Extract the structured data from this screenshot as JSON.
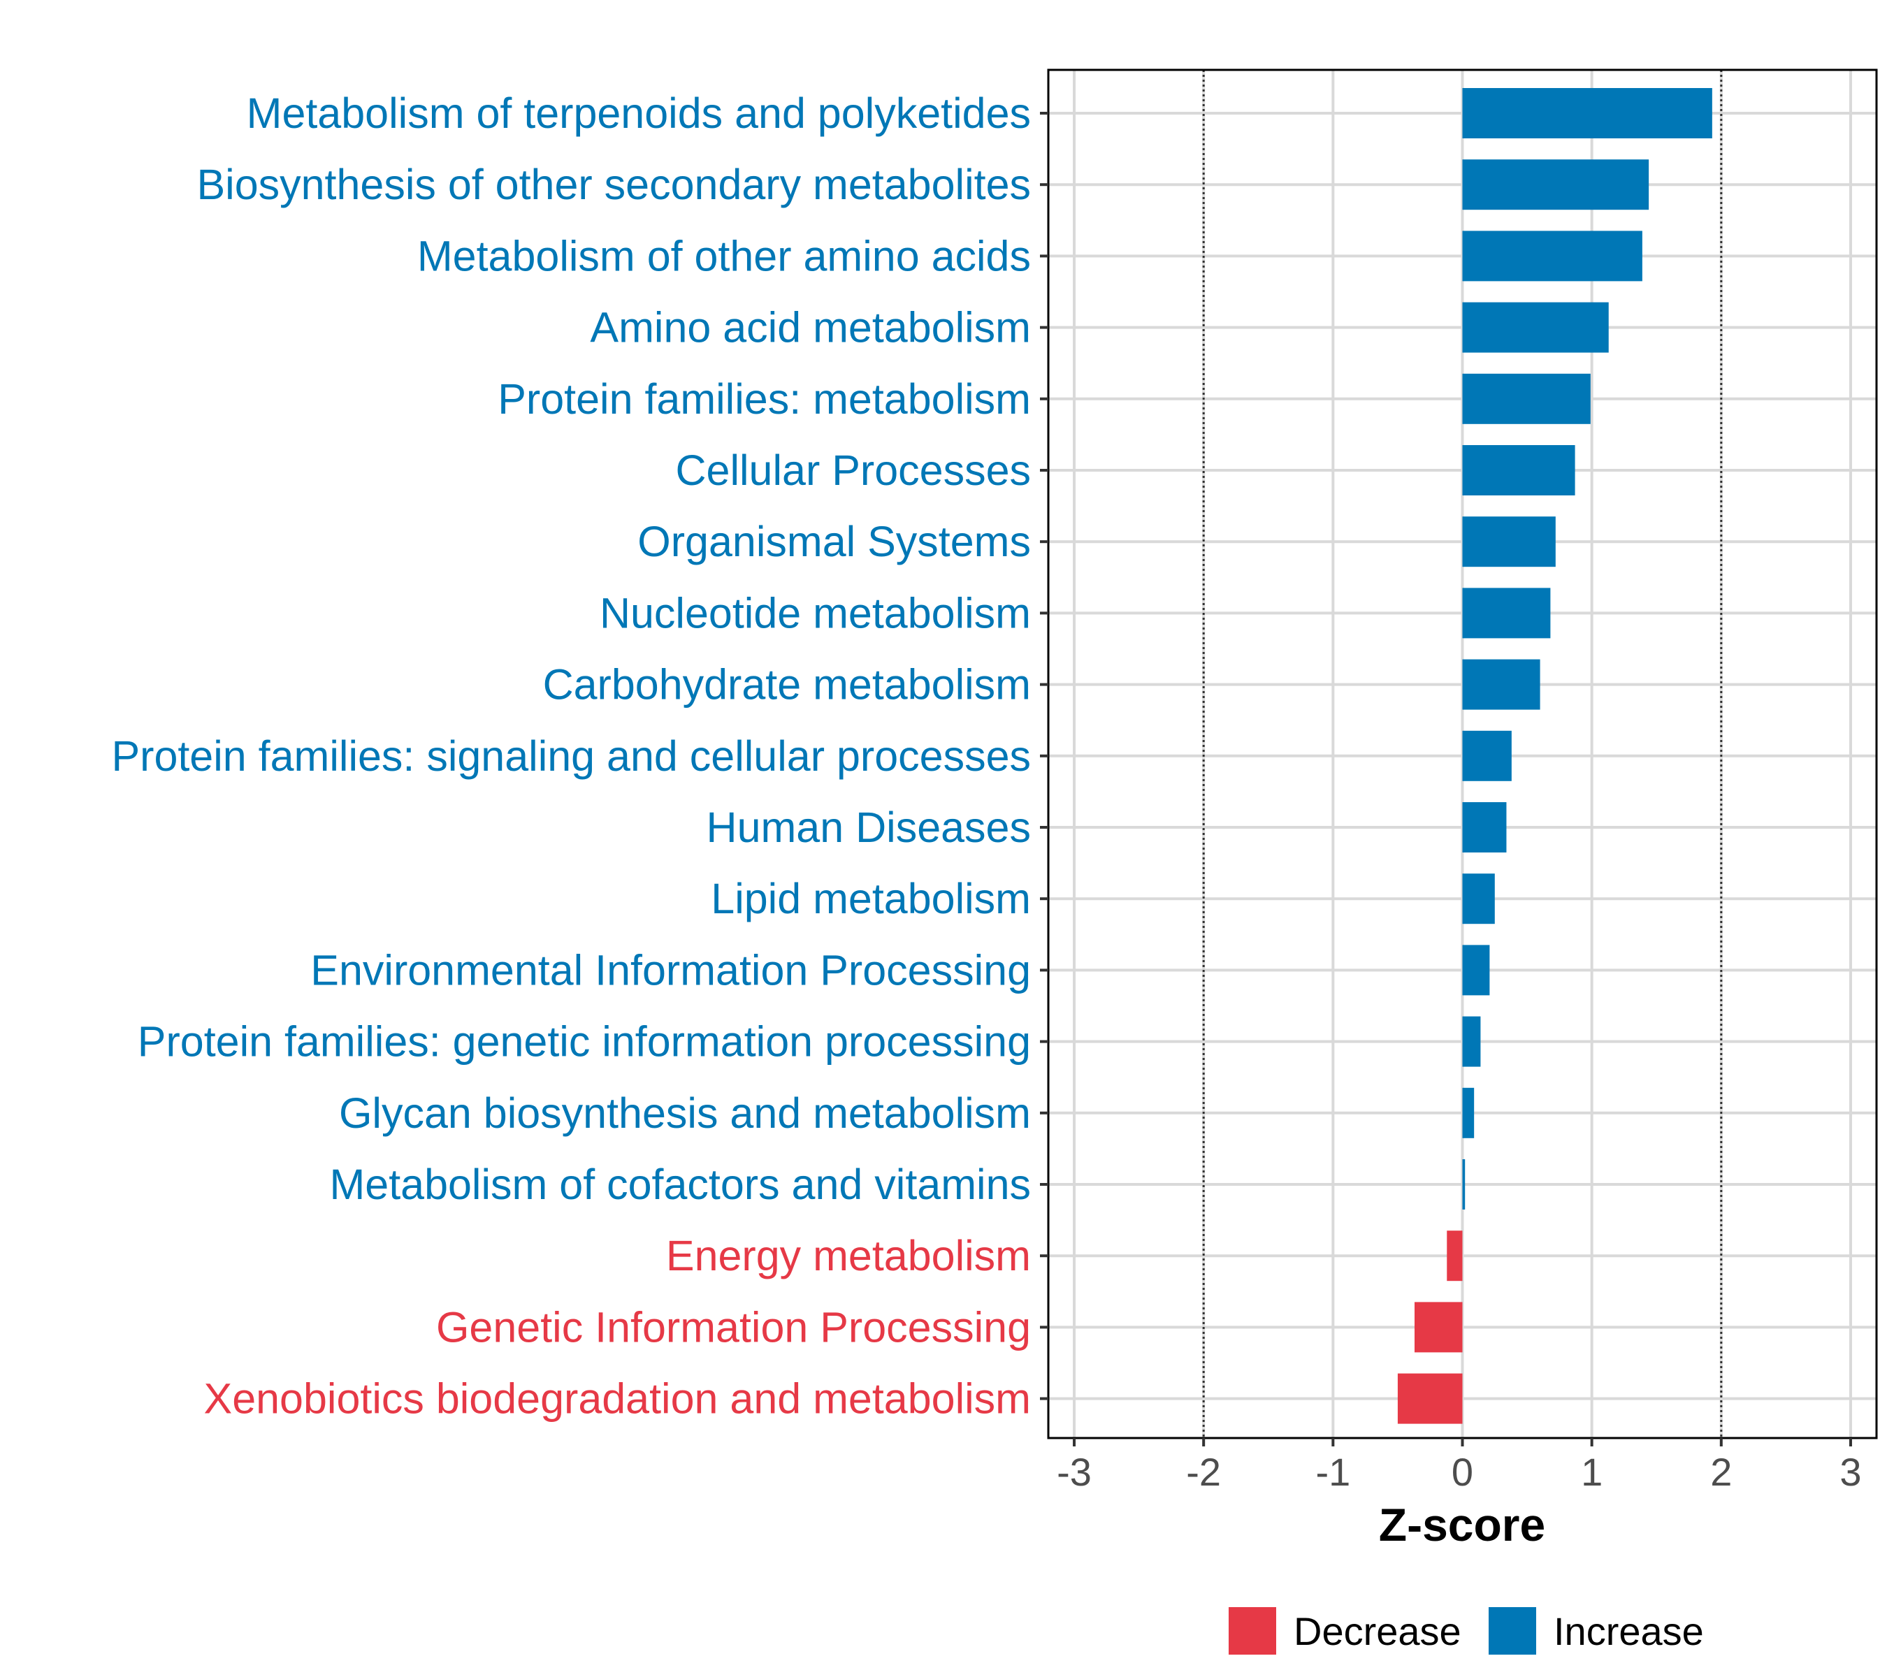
{
  "chart_data": {
    "type": "bar",
    "orientation": "horizontal",
    "categories": [
      "Metabolism of terpenoids and polyketides",
      "Biosynthesis of other secondary metabolites",
      "Metabolism of other amino acids",
      "Amino acid metabolism",
      "Protein families: metabolism",
      "Cellular Processes",
      "Organismal Systems",
      "Nucleotide metabolism",
      "Carbohydrate metabolism",
      "Protein families: signaling and cellular processes",
      "Human Diseases",
      "Lipid metabolism",
      "Environmental Information Processing",
      "Protein families: genetic information processing",
      "Glycan biosynthesis and metabolism",
      "Metabolism of cofactors and vitamins",
      "Energy metabolism",
      "Genetic Information Processing",
      "Xenobiotics biodegradation and metabolism"
    ],
    "values": [
      1.93,
      1.44,
      1.39,
      1.13,
      0.99,
      0.87,
      0.72,
      0.68,
      0.6,
      0.38,
      0.34,
      0.25,
      0.21,
      0.14,
      0.09,
      0.02,
      -0.12,
      -0.37,
      -0.5
    ],
    "groups": [
      "Increase",
      "Increase",
      "Increase",
      "Increase",
      "Increase",
      "Increase",
      "Increase",
      "Increase",
      "Increase",
      "Increase",
      "Increase",
      "Increase",
      "Increase",
      "Increase",
      "Increase",
      "Increase",
      "Decrease",
      "Decrease",
      "Decrease"
    ],
    "xlabel": "Z-score",
    "ylabel": "",
    "xlim": [
      -3.2,
      3.2
    ],
    "xticks": [
      -3,
      -2,
      -1,
      0,
      1,
      2,
      3
    ],
    "xtick_labels": [
      "-3",
      "-2",
      "-1",
      "0",
      "1",
      "2",
      "3"
    ],
    "reference_lines": [
      -2,
      2
    ],
    "grid": true,
    "legend": {
      "placement": "bottom",
      "items": [
        {
          "label": "Decrease",
          "color": "#e63946"
        },
        {
          "label": "Increase",
          "color": "#0077b6"
        }
      ]
    },
    "colors": {
      "Increase": "#0077b6",
      "Decrease": "#e63946"
    }
  }
}
